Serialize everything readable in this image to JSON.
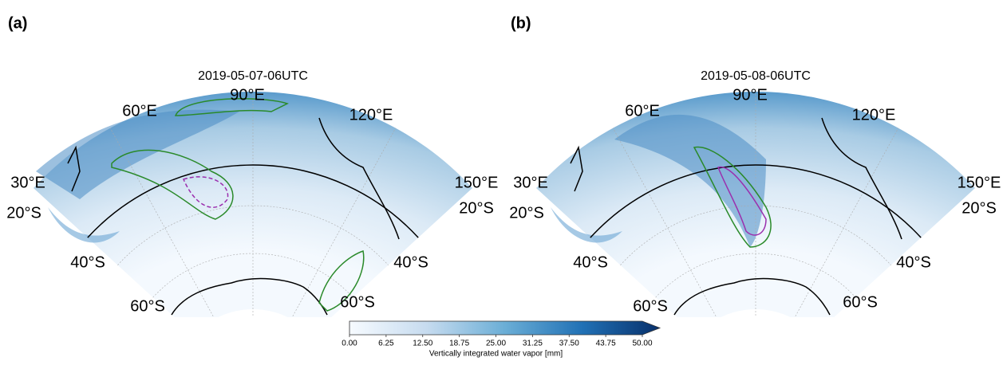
{
  "panels": [
    {
      "label": "(a)",
      "title": "2019-05-07-06UTC",
      "lon_labels": [
        "30°E",
        "60°E",
        "90°E",
        "120°E",
        "150°E"
      ],
      "lat_labels": [
        "20°S",
        "40°S",
        "60°S"
      ]
    },
    {
      "label": "(b)",
      "title": "2019-05-08-06UTC",
      "lon_labels": [
        "30°E",
        "60°E",
        "90°E",
        "120°E",
        "150°E"
      ],
      "lat_labels": [
        "20°S",
        "40°S",
        "60°S"
      ]
    }
  ],
  "colorbar": {
    "label": "Vertically integrated water vapor [mm]",
    "lim": [
      0,
      50
    ],
    "ticks": [
      {
        "value": 0,
        "label": "0.00"
      },
      6.25,
      {
        "value": 12.5,
        "label": "12.50"
      },
      18.75,
      {
        "value": 25,
        "label": "25.00"
      },
      31.25,
      {
        "value": 37.5,
        "label": "37.50"
      },
      43.75,
      {
        "value": 50,
        "label": "50.00"
      }
    ]
  }
}
